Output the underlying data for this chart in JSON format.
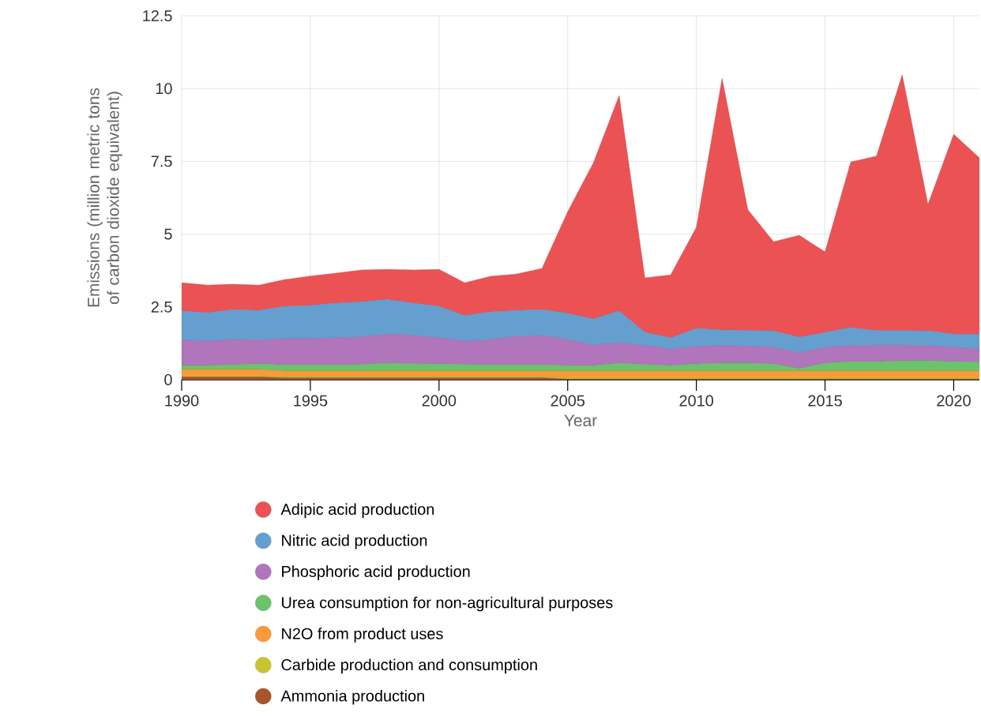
{
  "chart_data": {
    "type": "area",
    "stacked": true,
    "xlabel": "Year",
    "ylabel": "Emissions (million metric tons of carbon dioxide equivalent)",
    "x": [
      1990,
      1991,
      1992,
      1993,
      1994,
      1995,
      1996,
      1997,
      1998,
      1999,
      2000,
      2001,
      2002,
      2003,
      2004,
      2005,
      2006,
      2007,
      2008,
      2009,
      2010,
      2011,
      2012,
      2013,
      2014,
      2015,
      2016,
      2017,
      2018,
      2019,
      2020,
      2021
    ],
    "xlim": [
      1990,
      2021
    ],
    "xticks": [
      1990,
      1995,
      2000,
      2005,
      2010,
      2015,
      2020
    ],
    "ylim": [
      0,
      12.5
    ],
    "yticks": [
      0,
      2.5,
      5,
      7.5,
      10,
      12.5
    ],
    "grid": true,
    "legend": "bottom",
    "series": [
      {
        "name": "Ammonia production",
        "color": "#a65628",
        "values": [
          0.1,
          0.1,
          0.1,
          0.1,
          0.07,
          0.07,
          0.07,
          0.07,
          0.07,
          0.07,
          0.07,
          0.07,
          0.07,
          0.07,
          0.07,
          0.02,
          0.02,
          0.02,
          0.02,
          0.02,
          0.02,
          0.02,
          0.02,
          0.02,
          0.02,
          0.02,
          0.02,
          0.02,
          0.02,
          0.02,
          0.02,
          0.02
        ]
      },
      {
        "name": "Carbide production and consumption",
        "color": "#c5c52f",
        "values": [
          0.04,
          0.04,
          0.04,
          0.04,
          0.04,
          0.04,
          0.04,
          0.04,
          0.04,
          0.04,
          0.04,
          0.04,
          0.04,
          0.04,
          0.04,
          0.04,
          0.04,
          0.04,
          0.04,
          0.04,
          0.04,
          0.04,
          0.04,
          0.04,
          0.04,
          0.04,
          0.04,
          0.04,
          0.04,
          0.04,
          0.04,
          0.04
        ]
      },
      {
        "name": "N2O from product uses",
        "color": "#fb9a3a",
        "values": [
          0.21,
          0.21,
          0.21,
          0.21,
          0.19,
          0.19,
          0.19,
          0.19,
          0.19,
          0.19,
          0.19,
          0.19,
          0.19,
          0.19,
          0.19,
          0.24,
          0.24,
          0.24,
          0.24,
          0.24,
          0.24,
          0.24,
          0.24,
          0.24,
          0.24,
          0.24,
          0.24,
          0.24,
          0.24,
          0.24,
          0.24,
          0.24
        ]
      },
      {
        "name": "Urea consumption for non-agricultural purposes",
        "color": "#6cc46a",
        "values": [
          0.14,
          0.14,
          0.16,
          0.19,
          0.21,
          0.21,
          0.21,
          0.22,
          0.27,
          0.25,
          0.24,
          0.22,
          0.21,
          0.21,
          0.21,
          0.19,
          0.19,
          0.27,
          0.22,
          0.19,
          0.24,
          0.27,
          0.27,
          0.24,
          0.08,
          0.27,
          0.32,
          0.32,
          0.35,
          0.35,
          0.32,
          0.3
        ]
      },
      {
        "name": "Phosphoric acid production",
        "color": "#b075bb",
        "values": [
          0.87,
          0.84,
          0.87,
          0.82,
          0.9,
          0.9,
          0.93,
          0.94,
          1.0,
          0.97,
          0.9,
          0.81,
          0.87,
          0.98,
          1.01,
          0.89,
          0.7,
          0.7,
          0.65,
          0.57,
          0.6,
          0.6,
          0.58,
          0.57,
          0.54,
          0.54,
          0.55,
          0.56,
          0.53,
          0.52,
          0.49,
          0.46
        ]
      },
      {
        "name": "Nitric acid production",
        "color": "#659fcf",
        "values": [
          1.0,
          0.97,
          1.03,
          1.02,
          1.11,
          1.14,
          1.19,
          1.22,
          1.19,
          1.11,
          1.08,
          0.87,
          0.95,
          0.89,
          0.89,
          0.9,
          0.9,
          1.09,
          0.46,
          0.38,
          0.62,
          0.54,
          0.54,
          0.57,
          0.54,
          0.52,
          0.62,
          0.51,
          0.51,
          0.51,
          0.46,
          0.51
        ]
      },
      {
        "name": "Adipic acid production",
        "color": "#eb5254",
        "values": [
          0.97,
          0.95,
          0.87,
          0.87,
          0.92,
          1.01,
          1.03,
          1.09,
          1.03,
          1.14,
          1.27,
          1.13,
          1.22,
          1.25,
          1.41,
          3.49,
          5.36,
          7.4,
          1.87,
          2.16,
          3.47,
          8.64,
          4.15,
          3.06,
          3.5,
          2.76,
          5.69,
          5.99,
          8.78,
          4.34,
          6.86,
          6.05
        ]
      }
    ]
  }
}
